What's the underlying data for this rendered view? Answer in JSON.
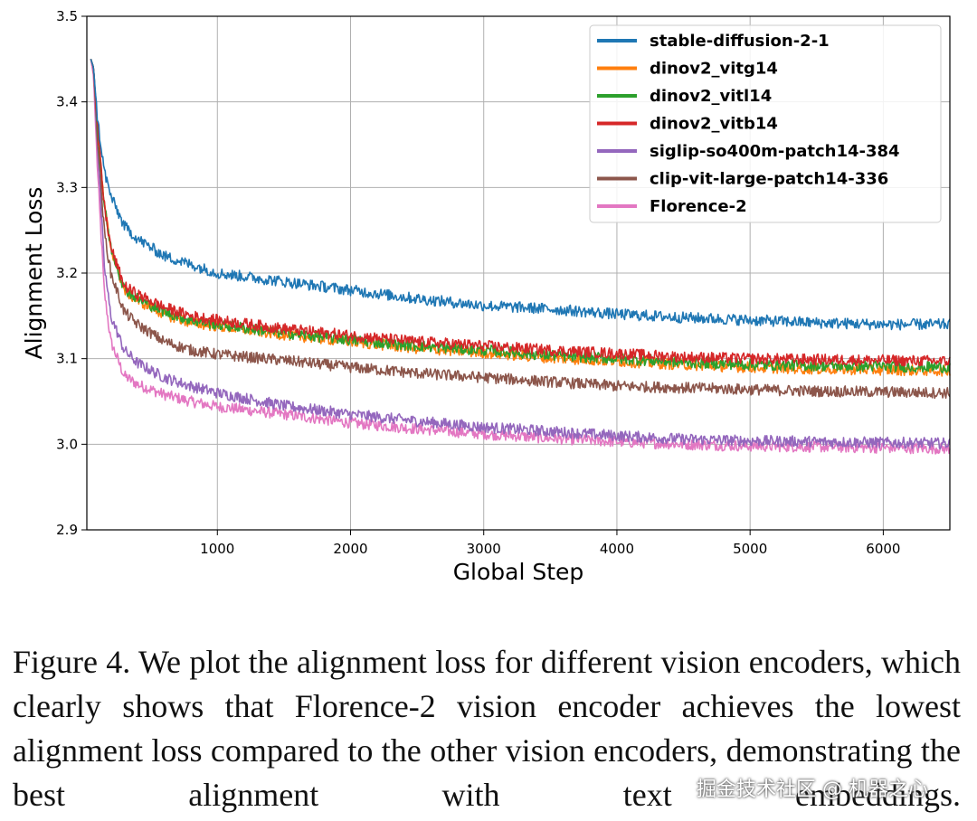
{
  "chart_data": {
    "type": "line",
    "xlabel": "Global Step",
    "ylabel": "Alignment Loss",
    "xlim": [
      20,
      6500
    ],
    "ylim": [
      2.9,
      3.5
    ],
    "xticks": [
      1000,
      2000,
      3000,
      4000,
      5000,
      6000
    ],
    "yticks": [
      2.9,
      3.0,
      3.1,
      3.2,
      3.3,
      3.4,
      3.5
    ],
    "xtick_labels": [
      "1000",
      "2000",
      "3000",
      "4000",
      "5000",
      "6000"
    ],
    "ytick_labels": [
      "2.9",
      "3.0",
      "3.1",
      "3.2",
      "3.3",
      "3.4",
      "3.5"
    ],
    "grid": true,
    "legend_position": "top-right",
    "x": [
      50,
      70,
      100,
      150,
      200,
      300,
      400,
      600,
      800,
      1000,
      1500,
      2000,
      2500,
      3000,
      3500,
      4000,
      4500,
      5000,
      5500,
      6000,
      6500
    ],
    "series": [
      {
        "name": "stable-diffusion-2-1",
        "color": "#1f77b4",
        "values": [
          3.45,
          3.44,
          3.38,
          3.32,
          3.29,
          3.255,
          3.24,
          3.22,
          3.21,
          3.2,
          3.19,
          3.18,
          3.17,
          3.162,
          3.158,
          3.152,
          3.148,
          3.145,
          3.142,
          3.14,
          3.14
        ]
      },
      {
        "name": "dinov2_vitg14",
        "color": "#ff7f0e",
        "values": [
          3.45,
          3.44,
          3.37,
          3.28,
          3.23,
          3.18,
          3.168,
          3.152,
          3.142,
          3.138,
          3.128,
          3.12,
          3.112,
          3.107,
          3.101,
          3.097,
          3.093,
          3.09,
          3.088,
          3.087,
          3.086
        ]
      },
      {
        "name": "dinov2_vitl14",
        "color": "#2ca02c",
        "values": [
          3.45,
          3.44,
          3.37,
          3.28,
          3.23,
          3.182,
          3.17,
          3.155,
          3.145,
          3.14,
          3.13,
          3.122,
          3.115,
          3.11,
          3.104,
          3.1,
          3.096,
          3.093,
          3.092,
          3.091,
          3.09
        ]
      },
      {
        "name": "dinov2_vitb14",
        "color": "#d62728",
        "values": [
          3.45,
          3.44,
          3.37,
          3.28,
          3.23,
          3.185,
          3.175,
          3.16,
          3.15,
          3.145,
          3.135,
          3.127,
          3.12,
          3.115,
          3.11,
          3.106,
          3.102,
          3.1,
          3.099,
          3.098,
          3.097
        ]
      },
      {
        "name": "siglip-so400m-patch14-384",
        "color": "#9467bd",
        "values": [
          3.45,
          3.44,
          3.35,
          3.21,
          3.15,
          3.11,
          3.095,
          3.078,
          3.068,
          3.06,
          3.045,
          3.035,
          3.027,
          3.02,
          3.015,
          3.01,
          3.006,
          3.004,
          3.003,
          3.002,
          3.001
        ]
      },
      {
        "name": "clip-vit-large-patch14-336",
        "color": "#8c564b",
        "values": [
          3.45,
          3.44,
          3.36,
          3.25,
          3.2,
          3.155,
          3.14,
          3.12,
          3.11,
          3.105,
          3.098,
          3.09,
          3.083,
          3.078,
          3.073,
          3.068,
          3.066,
          3.064,
          3.062,
          3.061,
          3.06
        ]
      },
      {
        "name": "Florence-2",
        "color": "#e377c2",
        "values": [
          3.45,
          3.43,
          3.32,
          3.18,
          3.12,
          3.08,
          3.07,
          3.058,
          3.05,
          3.044,
          3.035,
          3.025,
          3.018,
          3.012,
          3.007,
          3.003,
          3.0,
          2.998,
          2.997,
          2.996,
          2.995
        ]
      }
    ]
  },
  "caption": "Figure 4. We plot the alignment loss for different vision encoders, which clearly shows that Florence-2 vision encoder achieves the lowest alignment loss compared to the other vision encoders, demonstrating the best alignment with text embeddings.",
  "watermark": "掘金技术社区 @ 机器之心"
}
